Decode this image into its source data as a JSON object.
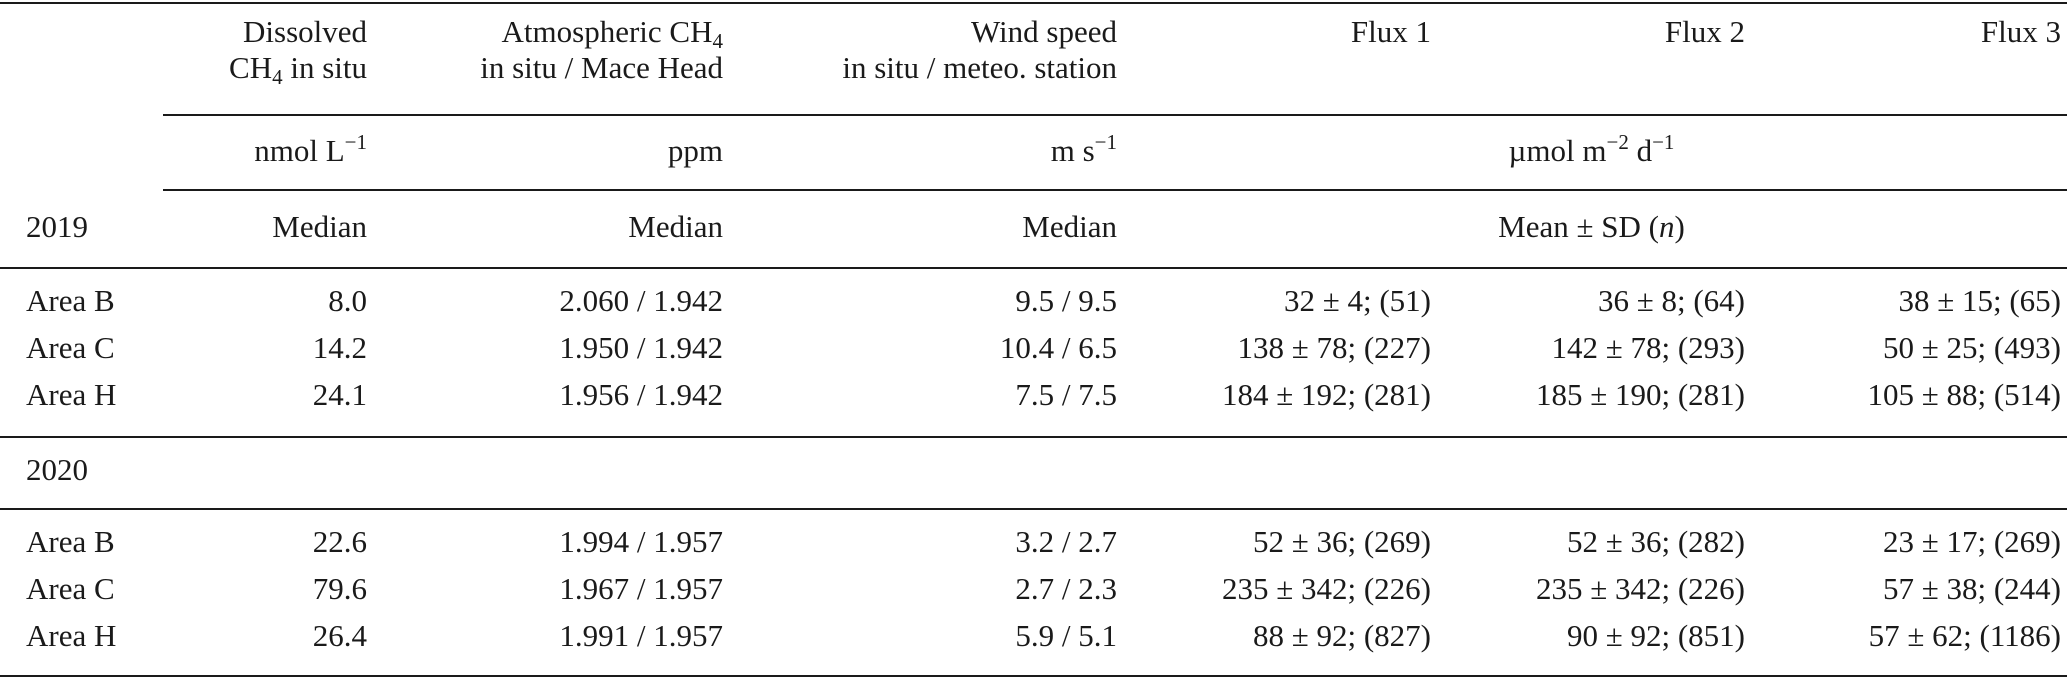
{
  "header": {
    "col_dissolved_line1": "Dissolved",
    "col_dissolved_line2_pre": "CH",
    "col_dissolved_line2_sub": "4",
    "col_dissolved_line2_post": " in situ",
    "col_atm_line1_pre": "Atmospheric CH",
    "col_atm_line1_sub": "4",
    "col_atm_line2": "in situ / Mace Head",
    "col_wind_line1": "Wind speed",
    "col_wind_line2": "in situ / meteo. station",
    "col_flux1": "Flux 1",
    "col_flux2": "Flux 2",
    "col_flux3": "Flux 3"
  },
  "units": {
    "dissolved_base": "nmol L",
    "dissolved_exp": "−1",
    "atm": "ppm",
    "wind_base": "m s",
    "wind_exp": "−1",
    "flux_base": "µmol m",
    "flux_exp1": "−2",
    "flux_mid": " d",
    "flux_exp2": "−1"
  },
  "stats": {
    "year": "2019",
    "dissolved": "Median",
    "atm": "Median",
    "wind": "Median",
    "flux_pre": "Mean ± SD (",
    "flux_n": "n",
    "flux_post": ")"
  },
  "section_2020_label": "2020",
  "rows_2019": [
    {
      "area": "Area B",
      "dissolved": "8.0",
      "atm": "2.060 / 1.942",
      "wind": "9.5 / 9.5",
      "flux1": "32 ± 4; (51)",
      "flux2": "36 ± 8; (64)",
      "flux3": "38 ± 15; (65)"
    },
    {
      "area": "Area C",
      "dissolved": "14.2",
      "atm": "1.950 / 1.942",
      "wind": "10.4 / 6.5",
      "flux1": "138 ± 78; (227)",
      "flux2": "142 ± 78; (293)",
      "flux3": "50 ± 25; (493)"
    },
    {
      "area": "Area H",
      "dissolved": "24.1",
      "atm": "1.956 / 1.942",
      "wind": "7.5 / 7.5",
      "flux1": "184 ± 192; (281)",
      "flux2": "185 ± 190; (281)",
      "flux3": "105 ± 88; (514)"
    }
  ],
  "rows_2020": [
    {
      "area": "Area B",
      "dissolved": "22.6",
      "atm": "1.994 / 1.957",
      "wind": "3.2 / 2.7",
      "flux1": "52 ± 36; (269)",
      "flux2": "52 ± 36; (282)",
      "flux3": "23 ± 17; (269)"
    },
    {
      "area": "Area C",
      "dissolved": "79.6",
      "atm": "1.967 / 1.957",
      "wind": "2.7 / 2.3",
      "flux1": "235 ± 342; (226)",
      "flux2": "235 ± 342; (226)",
      "flux3": "57 ± 38; (244)"
    },
    {
      "area": "Area H",
      "dissolved": "26.4",
      "atm": "1.991 / 1.957",
      "wind": "5.9 / 5.1",
      "flux1": "88 ± 92; (827)",
      "flux2": "90 ± 92; (851)",
      "flux3": "57 ± 62; (1186)"
    }
  ]
}
